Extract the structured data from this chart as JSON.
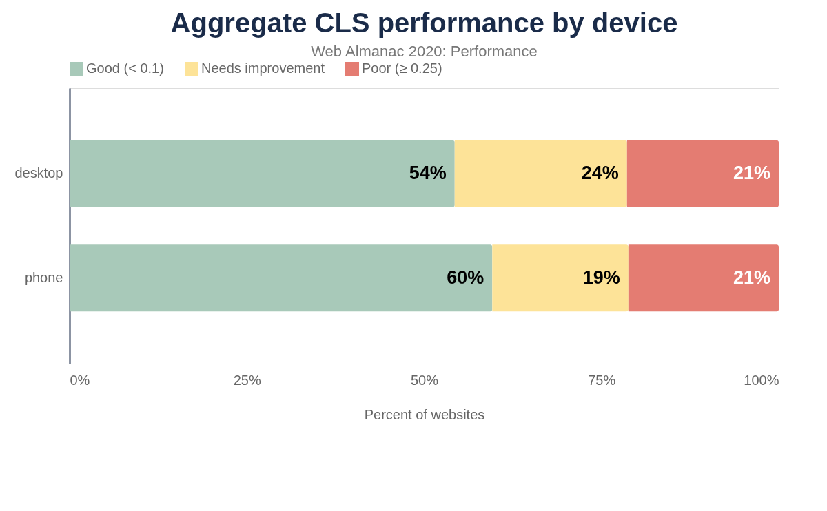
{
  "chart_data": {
    "type": "bar",
    "orientation": "horizontal",
    "stacked": true,
    "title": "Aggregate CLS performance by device",
    "subtitle": "Web Almanac 2020: Performance",
    "xlabel": "Percent of websites",
    "categories": [
      "desktop",
      "phone"
    ],
    "series": [
      {
        "name": "Good (< 0.1)",
        "color": "#a8c9b9",
        "values": [
          54.3,
          59.6
        ],
        "value_labels": [
          "54%",
          "60%"
        ]
      },
      {
        "name": "Needs improvement",
        "color": "#fde398",
        "values": [
          24.3,
          19.2
        ],
        "value_labels": [
          "24%",
          "19%"
        ]
      },
      {
        "name": "Poor (≥ 0.25)",
        "color": "#e47c72",
        "values": [
          21.4,
          21.2
        ],
        "value_labels": [
          "21%",
          "21%"
        ]
      }
    ],
    "xlim": [
      0,
      100
    ],
    "xticks": [
      {
        "value": 0,
        "label": "0%"
      },
      {
        "value": 25,
        "label": "25%"
      },
      {
        "value": 50,
        "label": "50%"
      },
      {
        "value": 75,
        "label": "75%"
      },
      {
        "value": 100,
        "label": "100%"
      }
    ],
    "grid": "x",
    "legend": "top"
  }
}
